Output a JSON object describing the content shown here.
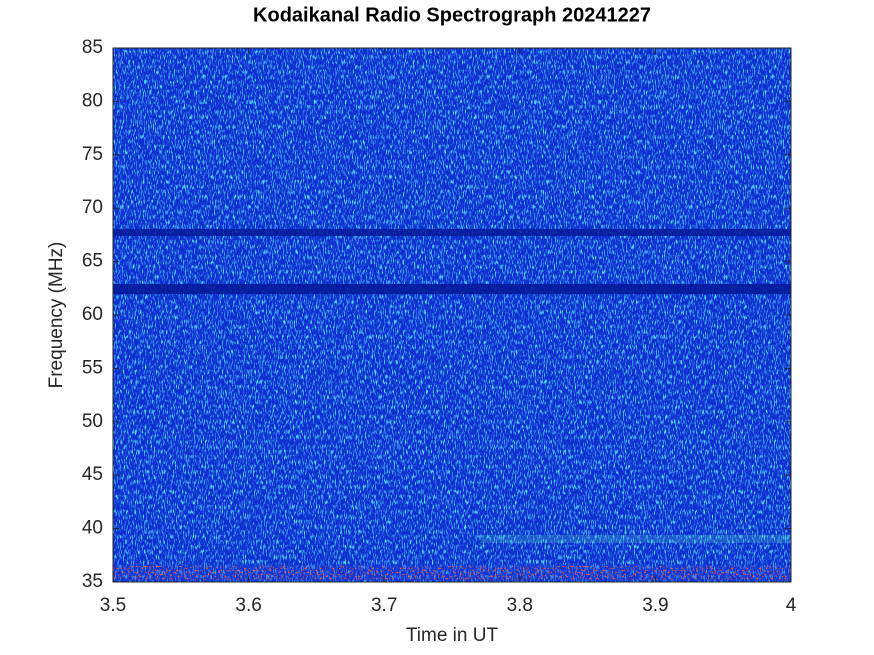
{
  "chart_data": {
    "type": "spectrogram",
    "title": "Kodaikanal Radio Spectrograph  20241227",
    "xlabel": "Time in UT",
    "ylabel": "Frequency (MHz)",
    "xlim": [
      3.5,
      4
    ],
    "xticks": [
      3.5,
      3.6,
      3.7,
      3.8,
      3.9,
      4
    ],
    "ylim": [
      35,
      85
    ],
    "yticks": [
      35,
      40,
      45,
      50,
      55,
      60,
      65,
      70,
      75,
      80,
      85
    ]
  }
}
